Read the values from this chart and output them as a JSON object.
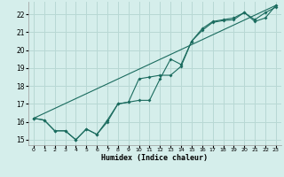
{
  "xlabel": "Humidex (Indice chaleur)",
  "xlim": [
    -0.5,
    23.5
  ],
  "ylim": [
    14.7,
    22.7
  ],
  "yticks": [
    15,
    16,
    17,
    18,
    19,
    20,
    21,
    22
  ],
  "xticks": [
    0,
    1,
    2,
    3,
    4,
    5,
    6,
    7,
    8,
    9,
    10,
    11,
    12,
    13,
    14,
    15,
    16,
    17,
    18,
    19,
    20,
    21,
    22,
    23
  ],
  "bg_color": "#d5eeeb",
  "grid_color": "#b8d8d4",
  "line_color": "#1a6b5e",
  "line1_x": [
    0,
    1,
    2,
    3,
    4,
    5,
    6,
    7,
    8,
    9,
    10,
    11,
    12,
    13,
    14,
    15,
    16,
    17,
    18,
    19,
    20,
    21,
    22,
    23
  ],
  "line1_y": [
    16.2,
    16.1,
    15.5,
    15.5,
    15.0,
    15.6,
    15.3,
    16.0,
    17.0,
    17.1,
    18.4,
    18.5,
    18.6,
    18.6,
    19.1,
    20.5,
    21.1,
    21.55,
    21.65,
    21.7,
    22.1,
    21.7,
    22.1,
    22.4
  ],
  "line2_x": [
    0,
    1,
    2,
    3,
    4,
    5,
    6,
    7,
    8,
    9,
    10,
    11,
    12,
    13,
    14,
    15,
    16,
    17,
    18,
    19,
    20,
    21,
    22,
    23
  ],
  "line2_y": [
    16.2,
    16.1,
    15.5,
    15.5,
    15.0,
    15.6,
    15.3,
    16.1,
    17.0,
    17.1,
    17.2,
    17.2,
    18.4,
    19.5,
    19.2,
    20.5,
    21.2,
    21.6,
    21.7,
    21.8,
    22.1,
    21.6,
    21.8,
    22.5
  ],
  "line3_x": [
    0,
    23
  ],
  "line3_y": [
    16.2,
    22.5
  ]
}
